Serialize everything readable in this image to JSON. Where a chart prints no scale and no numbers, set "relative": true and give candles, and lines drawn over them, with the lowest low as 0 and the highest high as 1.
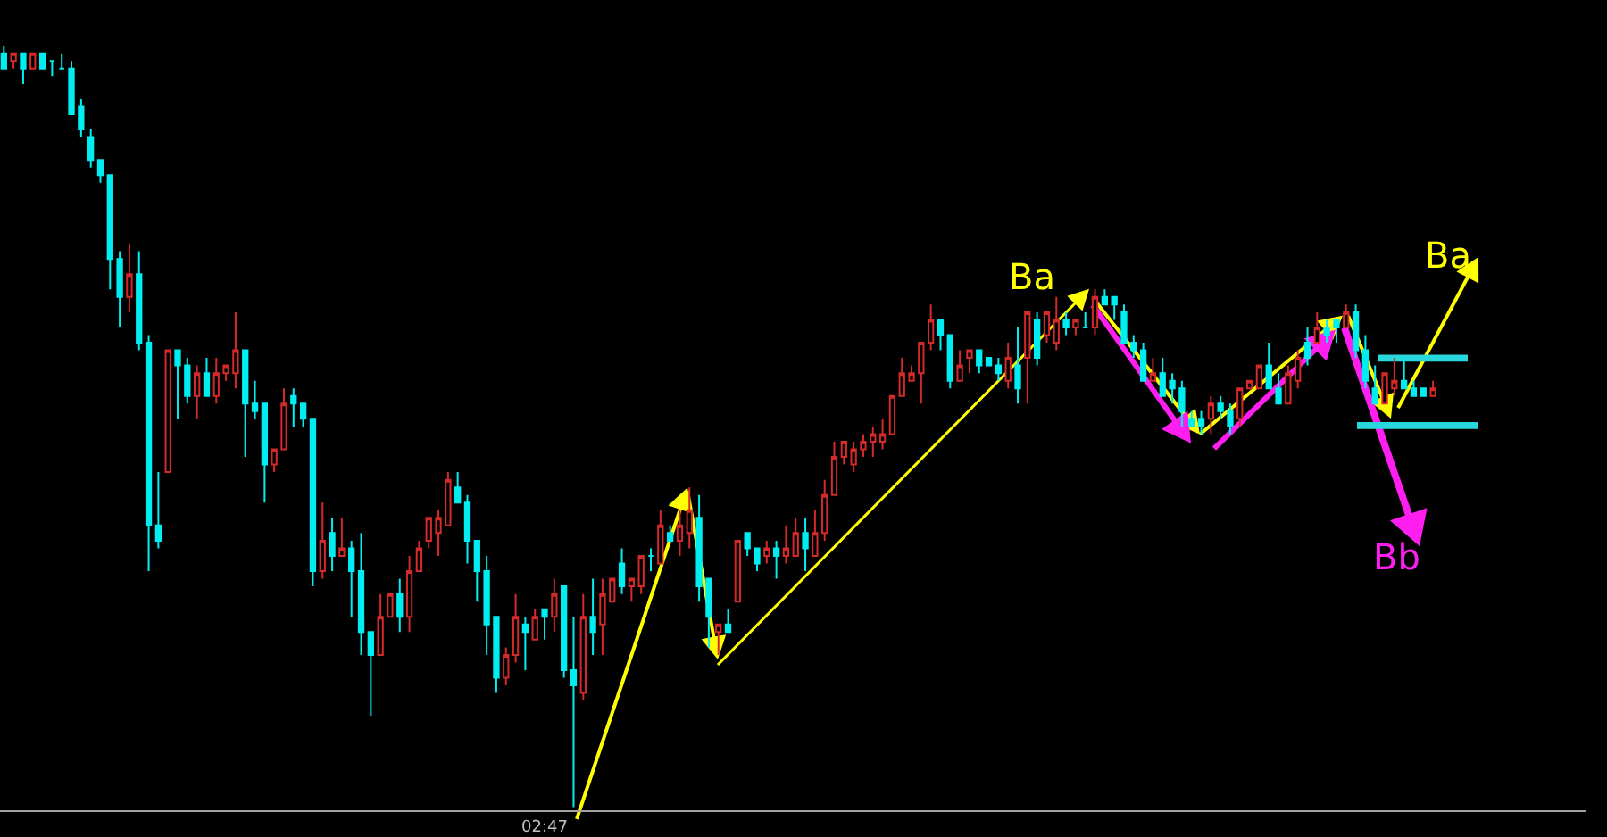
{
  "chart_data": {
    "type": "candlestick",
    "relative": true,
    "tick_labels": "x",
    "grid": false,
    "colors": [
      "#00eef2",
      "#d42a2a",
      "#00eef2",
      "#d42a2a",
      "#00eef2",
      "#00eef2",
      "#00eef2",
      "#00eef2",
      "#00eef2",
      "#00eef2",
      "#00eef2",
      "#00eef2",
      "#00eef2",
      "#d42a2a",
      "#00eef2",
      "#00eef2",
      "#00eef2",
      "#d42a2a",
      "#00eef2",
      "#00eef2",
      "#d42a2a",
      "#00eef2",
      "#d42a2a",
      "#d42a2a",
      "#d42a2a",
      "#00eef2",
      "#00eef2",
      "#00eef2",
      "#d42a2a",
      "#d42a2a",
      "#00eef2",
      "#00eef2",
      "#00eef2",
      "#d42a2a",
      "#00eef2",
      "#d42a2a",
      "#00eef2",
      "#00eef2",
      "#00eef2",
      "#d42a2a",
      "#d42a2a",
      "#00eef2",
      "#d42a2a",
      "#d42a2a",
      "#d42a2a",
      "#d42a2a",
      "#d42a2a",
      "#00eef2",
      "#00eef2",
      "#00eef2",
      "#00eef2",
      "#00eef2",
      "#d42a2a",
      "#d42a2a",
      "#00eef2",
      "#d42a2a",
      "#00eef2",
      "#d42a2a",
      "#00eef2",
      "#00eef2",
      "#d42a2a",
      "#00eef2",
      "#d42a2a",
      "#d42a2a",
      "#00eef2",
      "#d42a2a",
      "#d42a2a",
      "#00eef2",
      "#d42a2a",
      "#00eef2",
      "#d42a2a",
      "#d42a2a",
      "#00eef2",
      "#00eef2",
      "#d42a2a",
      "#00eef2",
      "#d42a2a",
      "#00eef2",
      "#00eef2",
      "#d42a2a",
      "#00eef2",
      "#d42a2a",
      "#d42a2a",
      "#00eef2",
      "#d42a2a",
      "#d42a2a",
      "#d42a2a",
      "#d42a2a",
      "#d42a2a",
      "#d42a2a",
      "#d42a2a",
      "#d42a2a",
      "#d42a2a",
      "#d42a2a",
      "#d42a2a",
      "#d42a2a",
      "#d42a2a",
      "#00eef2",
      "#00eef2",
      "#d42a2a",
      "#d42a2a",
      "#00eef2",
      "#00eef2",
      "#00eef2",
      "#d42a2a",
      "#00eef2",
      "#d42a2a",
      "#00eef2",
      "#d42a2a",
      "#d42a2a",
      "#00eef2",
      "#d42a2a",
      "#00eef2",
      "#d42a2a",
      "#00eef2",
      "#00eef2",
      "#00eef2",
      "#00eef2",
      "#00eef2",
      "#d42a2a",
      "#00eef2",
      "#00eef2",
      "#00eef2",
      "#00eef2",
      "#00eef2",
      "#d42a2a",
      "#00eef2",
      "#00eef2",
      "#d42a2a",
      "#d42a2a",
      "#d42a2a",
      "#00eef2",
      "#00eef2",
      "#d42a2a",
      "#d42a2a",
      "#00eef2",
      "#d42a2a",
      "#00eef2",
      "#00eef2",
      "#d42a2a",
      "#00eef2",
      "#00eef2",
      "#00eef2",
      "#d42a2a",
      "#d42a2a",
      "#00eef2",
      "#00eef2",
      "#00eef2",
      "#d42a2a"
    ],
    "categories": [
      null,
      null,
      null,
      null,
      null,
      null,
      null,
      null,
      null,
      null,
      null,
      null,
      null,
      null,
      null,
      null,
      null,
      null,
      null,
      null,
      null,
      null,
      null,
      null,
      null,
      null,
      null,
      null,
      null,
      null,
      null,
      null,
      null,
      null,
      null,
      null,
      null,
      null,
      null,
      null,
      null,
      null,
      null,
      null,
      null,
      null,
      null,
      null,
      null,
      null,
      null,
      null,
      null,
      null,
      null,
      null,
      "02:47",
      null,
      null,
      null,
      null,
      null,
      null,
      null,
      null,
      null,
      null,
      null,
      null,
      null,
      null,
      null,
      null,
      null,
      null,
      null,
      null,
      null,
      null,
      null,
      null,
      null,
      null,
      null,
      null,
      null,
      null,
      null,
      null,
      null,
      null,
      null,
      null,
      null,
      null,
      null,
      null,
      null,
      null,
      null,
      null,
      null,
      null,
      null,
      null,
      null,
      null,
      null,
      null,
      null,
      null,
      null,
      null,
      null,
      null,
      null,
      null,
      null,
      null,
      null,
      null,
      null,
      null,
      null,
      null,
      null,
      null,
      null,
      null,
      null,
      null,
      null,
      null,
      null,
      null,
      null,
      null,
      null,
      null,
      null,
      null,
      null,
      null,
      null,
      null,
      null,
      null,
      null,
      null
    ],
    "ohlc": [
      [
        0.99,
        1.0,
        0.97,
        0.97
      ],
      [
        0.98,
        0.99,
        0.97,
        0.99
      ],
      [
        0.99,
        0.99,
        0.95,
        0.97
      ],
      [
        0.97,
        0.99,
        0.97,
        0.99
      ],
      [
        0.99,
        0.99,
        0.97,
        0.97
      ],
      [
        0.98,
        0.98,
        0.96,
        0.98
      ],
      [
        0.97,
        0.99,
        0.97,
        0.97
      ],
      [
        0.97,
        0.98,
        0.91,
        0.91
      ],
      [
        0.92,
        0.93,
        0.88,
        0.89
      ],
      [
        0.88,
        0.89,
        0.84,
        0.85
      ],
      [
        0.85,
        0.85,
        0.82,
        0.83
      ],
      [
        0.83,
        0.83,
        0.68,
        0.72
      ],
      [
        0.72,
        0.73,
        0.63,
        0.67
      ],
      [
        0.67,
        0.74,
        0.65,
        0.7
      ],
      [
        0.7,
        0.73,
        0.6,
        0.61
      ],
      [
        0.61,
        0.62,
        0.31,
        0.37
      ],
      [
        0.37,
        0.44,
        0.34,
        0.35
      ],
      [
        0.44,
        0.6,
        0.44,
        0.6
      ],
      [
        0.6,
        0.6,
        0.51,
        0.58
      ],
      [
        0.58,
        0.59,
        0.53,
        0.54
      ],
      [
        0.54,
        0.58,
        0.51,
        0.57
      ],
      [
        0.57,
        0.59,
        0.54,
        0.54
      ],
      [
        0.54,
        0.59,
        0.53,
        0.57
      ],
      [
        0.57,
        0.58,
        0.56,
        0.58
      ],
      [
        0.57,
        0.65,
        0.55,
        0.6
      ],
      [
        0.6,
        0.6,
        0.46,
        0.53
      ],
      [
        0.53,
        0.56,
        0.51,
        0.52
      ],
      [
        0.53,
        0.53,
        0.4,
        0.45
      ],
      [
        0.45,
        0.47,
        0.44,
        0.47
      ],
      [
        0.47,
        0.55,
        0.47,
        0.53
      ],
      [
        0.54,
        0.55,
        0.5,
        0.53
      ],
      [
        0.53,
        0.53,
        0.5,
        0.51
      ],
      [
        0.51,
        0.51,
        0.29,
        0.31
      ],
      [
        0.31,
        0.4,
        0.3,
        0.35
      ],
      [
        0.36,
        0.38,
        0.31,
        0.33
      ],
      [
        0.33,
        0.38,
        0.33,
        0.34
      ],
      [
        0.34,
        0.35,
        0.25,
        0.31
      ],
      [
        0.31,
        0.36,
        0.2,
        0.23
      ],
      [
        0.23,
        0.23,
        0.12,
        0.2
      ],
      [
        0.2,
        0.28,
        0.2,
        0.25
      ],
      [
        0.25,
        0.28,
        0.25,
        0.28
      ],
      [
        0.28,
        0.3,
        0.23,
        0.25
      ],
      [
        0.25,
        0.33,
        0.23,
        0.31
      ],
      [
        0.31,
        0.35,
        0.31,
        0.34
      ],
      [
        0.35,
        0.38,
        0.34,
        0.38
      ],
      [
        0.36,
        0.39,
        0.33,
        0.38
      ],
      [
        0.37,
        0.44,
        0.37,
        0.43
      ],
      [
        0.42,
        0.44,
        0.4,
        0.4
      ],
      [
        0.4,
        0.41,
        0.32,
        0.35
      ],
      [
        0.35,
        0.35,
        0.27,
        0.31
      ],
      [
        0.31,
        0.33,
        0.2,
        0.24
      ],
      [
        0.25,
        0.25,
        0.15,
        0.17
      ],
      [
        0.17,
        0.21,
        0.16,
        0.2
      ],
      [
        0.2,
        0.28,
        0.19,
        0.25
      ],
      [
        0.24,
        0.25,
        0.18,
        0.23
      ],
      [
        0.22,
        0.26,
        0.22,
        0.25
      ],
      [
        0.26,
        0.26,
        0.22,
        0.25
      ],
      [
        0.25,
        0.3,
        0.23,
        0.28
      ],
      [
        0.29,
        0.29,
        0.17,
        0.18
      ],
      [
        0.18,
        0.25,
        0.0,
        0.16
      ],
      [
        0.15,
        0.28,
        0.14,
        0.25
      ],
      [
        0.25,
        0.3,
        0.2,
        0.23
      ],
      [
        0.24,
        0.3,
        0.2,
        0.28
      ],
      [
        0.27,
        0.3,
        0.27,
        0.3
      ],
      [
        0.32,
        0.34,
        0.28,
        0.29
      ],
      [
        0.29,
        0.3,
        0.27,
        0.3
      ],
      [
        0.29,
        0.33,
        0.28,
        0.33
      ],
      [
        0.33,
        0.34,
        0.31,
        0.33
      ],
      [
        0.32,
        0.39,
        0.32,
        0.37
      ],
      [
        0.36,
        0.37,
        0.35,
        0.35
      ],
      [
        0.35,
        0.39,
        0.33,
        0.37
      ],
      [
        0.36,
        0.42,
        0.34,
        0.39
      ],
      [
        0.38,
        0.41,
        0.27,
        0.29
      ],
      [
        0.3,
        0.3,
        0.21,
        0.25
      ],
      [
        0.23,
        0.24,
        0.2,
        0.24
      ],
      [
        0.24,
        0.26,
        0.23,
        0.23
      ],
      [
        0.27,
        0.35,
        0.27,
        0.35
      ],
      [
        0.36,
        0.36,
        0.33,
        0.34
      ],
      [
        0.34,
        0.34,
        0.31,
        0.32
      ],
      [
        0.33,
        0.35,
        0.32,
        0.34
      ],
      [
        0.34,
        0.35,
        0.3,
        0.33
      ],
      [
        0.33,
        0.37,
        0.32,
        0.34
      ],
      [
        0.33,
        0.38,
        0.33,
        0.36
      ],
      [
        0.36,
        0.38,
        0.31,
        0.34
      ],
      [
        0.33,
        0.39,
        0.33,
        0.36
      ],
      [
        0.36,
        0.43,
        0.35,
        0.41
      ],
      [
        0.41,
        0.48,
        0.41,
        0.46
      ],
      [
        0.46,
        0.48,
        0.45,
        0.48
      ],
      [
        0.45,
        0.48,
        0.44,
        0.47
      ],
      [
        0.47,
        0.49,
        0.46,
        0.48
      ],
      [
        0.48,
        0.5,
        0.46,
        0.49
      ],
      [
        0.48,
        0.51,
        0.47,
        0.49
      ],
      [
        0.49,
        0.54,
        0.49,
        0.54
      ],
      [
        0.54,
        0.59,
        0.54,
        0.57
      ],
      [
        0.56,
        0.58,
        0.56,
        0.57
      ],
      [
        0.57,
        0.61,
        0.53,
        0.61
      ],
      [
        0.61,
        0.66,
        0.6,
        0.64
      ],
      [
        0.64,
        0.64,
        0.6,
        0.62
      ],
      [
        0.62,
        0.62,
        0.55,
        0.56
      ],
      [
        0.56,
        0.6,
        0.56,
        0.58
      ],
      [
        0.59,
        0.6,
        0.57,
        0.6
      ],
      [
        0.6,
        0.6,
        0.57,
        0.58
      ],
      [
        0.59,
        0.59,
        0.58,
        0.58
      ],
      [
        0.58,
        0.59,
        0.56,
        0.57
      ],
      [
        0.56,
        0.61,
        0.55,
        0.59
      ],
      [
        0.58,
        0.63,
        0.53,
        0.55
      ],
      [
        0.59,
        0.65,
        0.53,
        0.65
      ],
      [
        0.64,
        0.65,
        0.58,
        0.59
      ],
      [
        0.62,
        0.65,
        0.61,
        0.65
      ],
      [
        0.61,
        0.67,
        0.6,
        0.64
      ],
      [
        0.64,
        0.65,
        0.62,
        0.63
      ],
      [
        0.63,
        0.64,
        0.62,
        0.64
      ],
      [
        0.63,
        0.65,
        0.63,
        0.63
      ],
      [
        0.63,
        0.68,
        0.62,
        0.67
      ],
      [
        0.67,
        0.68,
        0.66,
        0.66
      ],
      [
        0.67,
        0.67,
        0.64,
        0.66
      ],
      [
        0.65,
        0.66,
        0.61,
        0.61
      ],
      [
        0.61,
        0.62,
        0.59,
        0.6
      ],
      [
        0.6,
        0.61,
        0.56,
        0.56
      ],
      [
        0.56,
        0.59,
        0.56,
        0.57
      ],
      [
        0.57,
        0.59,
        0.54,
        0.54
      ],
      [
        0.56,
        0.57,
        0.53,
        0.55
      ],
      [
        0.55,
        0.56,
        0.5,
        0.52
      ],
      [
        0.51,
        0.52,
        0.5,
        0.5
      ],
      [
        0.51,
        0.52,
        0.49,
        0.5
      ],
      [
        0.51,
        0.54,
        0.49,
        0.53
      ],
      [
        0.53,
        0.54,
        0.51,
        0.52
      ],
      [
        0.52,
        0.53,
        0.49,
        0.5
      ],
      [
        0.51,
        0.55,
        0.5,
        0.55
      ],
      [
        0.55,
        0.56,
        0.55,
        0.56
      ],
      [
        0.55,
        0.58,
        0.55,
        0.58
      ],
      [
        0.58,
        0.61,
        0.55,
        0.55
      ],
      [
        0.55,
        0.57,
        0.53,
        0.53
      ],
      [
        0.53,
        0.58,
        0.53,
        0.57
      ],
      [
        0.56,
        0.6,
        0.55,
        0.59
      ],
      [
        0.61,
        0.63,
        0.58,
        0.59
      ],
      [
        0.61,
        0.65,
        0.61,
        0.63
      ],
      [
        0.63,
        0.64,
        0.61,
        0.62
      ],
      [
        0.64,
        0.64,
        0.61,
        0.63
      ],
      [
        0.63,
        0.66,
        0.63,
        0.65
      ],
      [
        0.65,
        0.66,
        0.59,
        0.6
      ],
      [
        0.6,
        0.62,
        0.55,
        0.56
      ],
      [
        0.55,
        0.58,
        0.53,
        0.53
      ],
      [
        0.53,
        0.57,
        0.53,
        0.57
      ],
      [
        0.55,
        0.59,
        0.54,
        0.56
      ],
      [
        0.56,
        0.59,
        0.55,
        0.55
      ],
      [
        0.55,
        0.56,
        0.54,
        0.54
      ],
      [
        0.55,
        0.55,
        0.54,
        0.54
      ],
      [
        0.54,
        0.56,
        0.54,
        0.55
      ]
    ],
    "annotations": [
      "Ba",
      "Ba",
      "Bb"
    ]
  }
}
